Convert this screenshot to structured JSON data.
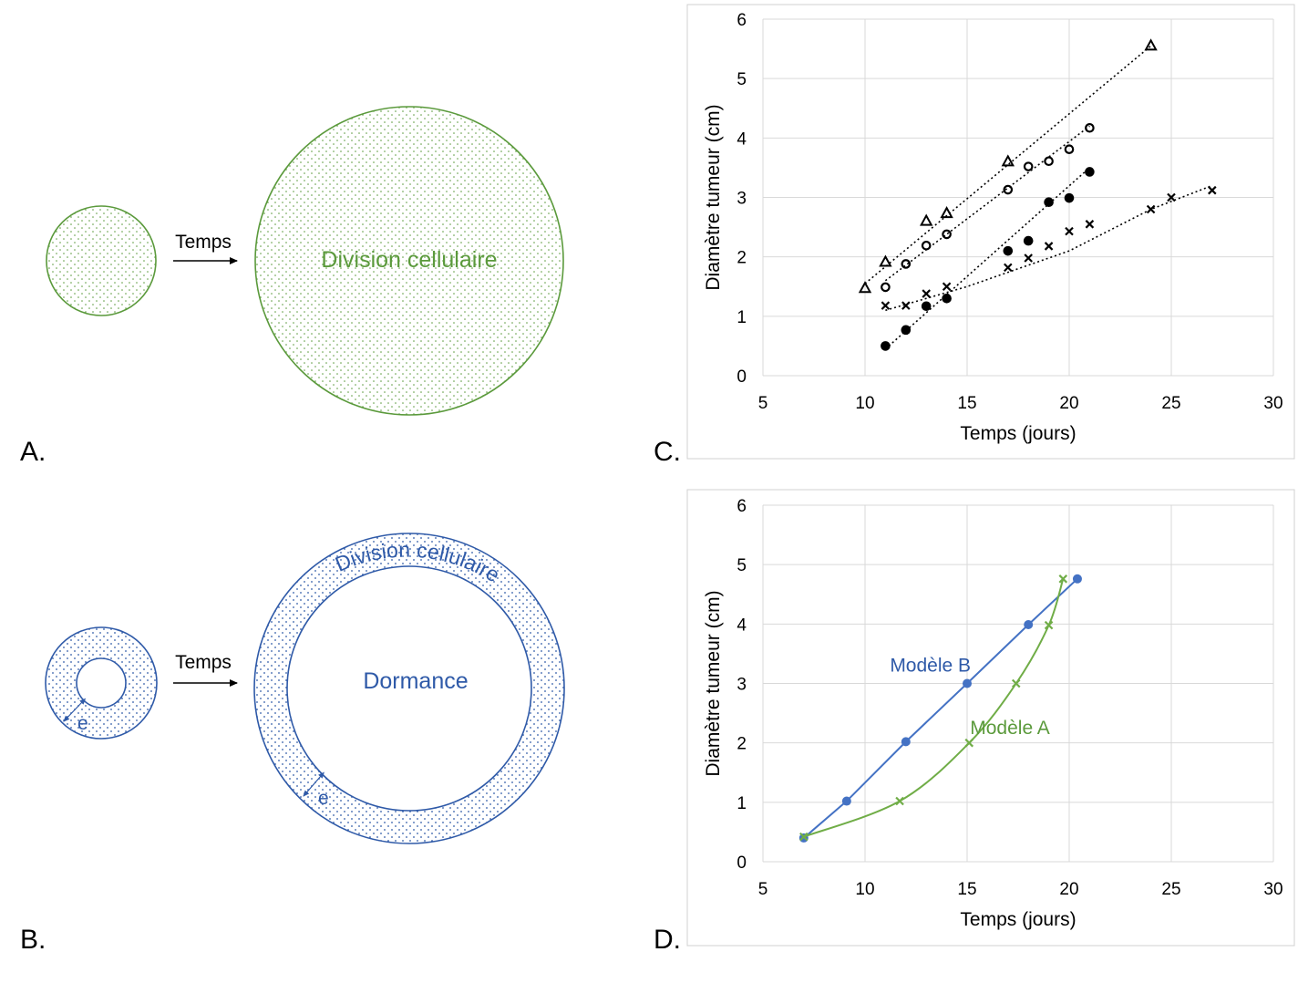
{
  "panels": {
    "A": {
      "letter": "A.",
      "arrow_label": "Temps",
      "big_label": "Division cellulaire",
      "color": "#5b9a3c"
    },
    "B": {
      "letter": "B.",
      "arrow_label": "Temps",
      "ring_label": "Division cellulaire",
      "core_label": "Dormance",
      "thickness_label": "e",
      "color": "#2f5aa8"
    },
    "C": {
      "letter": "C."
    },
    "D": {
      "letter": "D."
    }
  },
  "chart_data": [
    {
      "id": "C",
      "type": "scatter",
      "xlabel": "Temps (jours)",
      "ylabel": "Diamètre tumeur (cm)",
      "xlim": [
        5,
        30
      ],
      "ylim": [
        0,
        6
      ],
      "xticks": [
        5,
        10,
        15,
        20,
        25,
        30
      ],
      "yticks": [
        0,
        1,
        2,
        3,
        4,
        5,
        6
      ],
      "grid": true,
      "series": [
        {
          "marker": "triangle",
          "trend": [
            [
              10,
              1.55
            ],
            [
              24,
              5.55
            ]
          ],
          "points": [
            [
              10,
              1.47
            ],
            [
              11,
              1.91
            ],
            [
              13,
              2.6
            ],
            [
              14,
              2.73
            ],
            [
              17,
              3.6
            ],
            [
              24,
              5.55
            ]
          ]
        },
        {
          "marker": "circle-open",
          "trend": [
            [
              11,
              1.6
            ],
            [
              21,
              4.2
            ]
          ],
          "points": [
            [
              11,
              1.49
            ],
            [
              12,
              1.88
            ],
            [
              13,
              2.19
            ],
            [
              14,
              2.38
            ],
            [
              17,
              3.13
            ],
            [
              18,
              3.52
            ],
            [
              19,
              3.61
            ],
            [
              20,
              3.81
            ],
            [
              21,
              4.17
            ]
          ]
        },
        {
          "marker": "circle-filled",
          "trend": [
            [
              11,
              0.45
            ],
            [
              21,
              3.5
            ]
          ],
          "points": [
            [
              11,
              0.5
            ],
            [
              12,
              0.77
            ],
            [
              13,
              1.17
            ],
            [
              14,
              1.3
            ],
            [
              17,
              2.1
            ],
            [
              18,
              2.27
            ],
            [
              19,
              2.92
            ],
            [
              20,
              2.99
            ],
            [
              21,
              3.43
            ]
          ]
        },
        {
          "marker": "x",
          "trend": [
            [
              11,
              1.1
            ],
            [
              15,
              1.5
            ],
            [
              20,
              2.1
            ],
            [
              24,
              2.8
            ],
            [
              27,
              3.2
            ]
          ],
          "points": [
            [
              11,
              1.18
            ],
            [
              12,
              1.18
            ],
            [
              13,
              1.38
            ],
            [
              14,
              1.5
            ],
            [
              17,
              1.82
            ],
            [
              18,
              1.98
            ],
            [
              19,
              2.18
            ],
            [
              20,
              2.43
            ],
            [
              21,
              2.55
            ],
            [
              24,
              2.8
            ],
            [
              25,
              3.0
            ],
            [
              27,
              3.12
            ]
          ]
        }
      ]
    },
    {
      "id": "D",
      "type": "line",
      "xlabel": "Temps (jours)",
      "ylabel": "Diamètre tumeur (cm)",
      "xlim": [
        5,
        30
      ],
      "ylim": [
        0,
        6
      ],
      "xticks": [
        5,
        10,
        15,
        20,
        25,
        30
      ],
      "yticks": [
        0,
        1,
        2,
        3,
        4,
        5,
        6
      ],
      "grid": true,
      "series": [
        {
          "name": "Modèle B",
          "color": "#4472c4",
          "label_color": "#2f5aa8",
          "marker": "circle",
          "smooth": false,
          "label_pos": [
            13.2,
            3.2
          ],
          "points": [
            [
              7.0,
              0.4
            ],
            [
              9.1,
              1.02
            ],
            [
              12.0,
              2.02
            ],
            [
              15.0,
              3.0
            ],
            [
              18.0,
              3.99
            ],
            [
              20.4,
              4.76
            ]
          ]
        },
        {
          "name": "Modèle A",
          "color": "#70ad47",
          "label_color": "#5b9a3c",
          "marker": "x",
          "smooth": true,
          "label_pos": [
            17.1,
            2.15
          ],
          "points": [
            [
              7.0,
              0.42
            ],
            [
              11.7,
              1.02
            ],
            [
              15.1,
              2.0
            ],
            [
              17.4,
              3.0
            ],
            [
              19.0,
              3.98
            ],
            [
              19.7,
              4.76
            ]
          ]
        }
      ]
    }
  ]
}
